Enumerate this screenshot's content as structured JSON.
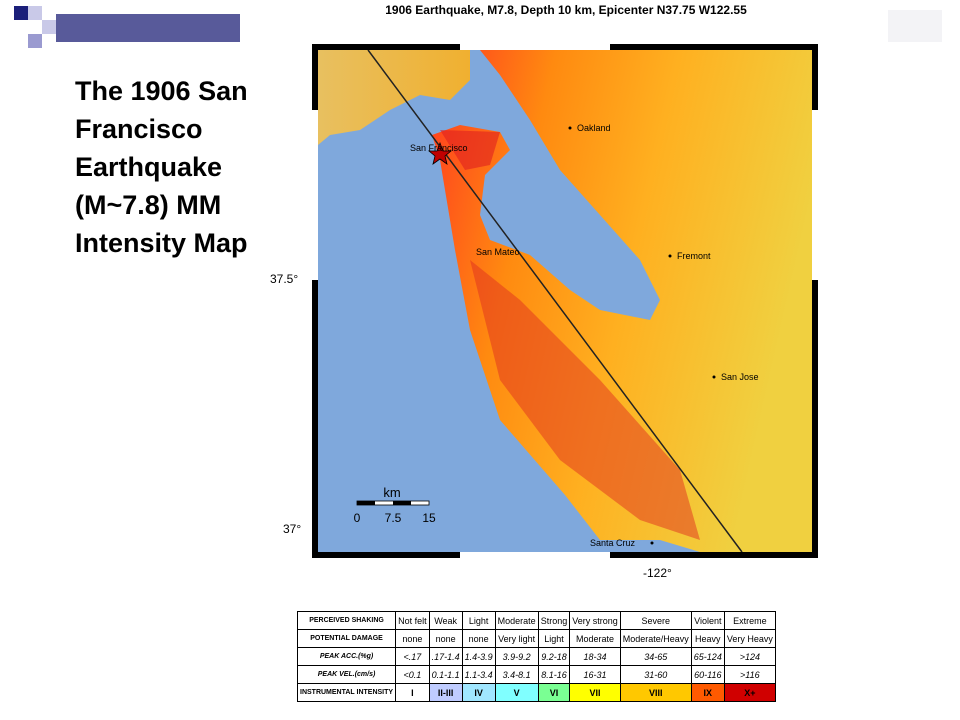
{
  "slide": {
    "title": "The 1906 San Francisco Earthquake (M~7.8) MM Intensity Map"
  },
  "map": {
    "title": "1906 Earthquake,  M7.8, Depth 10 km, Epicenter N37.75 W122.55",
    "lat_labels": [
      "37.5°",
      "37°"
    ],
    "lon_label": "-122°",
    "cities": [
      "San Francisco",
      "Oakland",
      "San Mateo",
      "Fremont",
      "San Jose",
      "Santa Cruz"
    ],
    "scale": {
      "unit": "km",
      "ticks": [
        "0",
        "7.5",
        "15"
      ]
    }
  },
  "legend": {
    "rows": [
      [
        "PERCEIVED SHAKING",
        "Not felt",
        "Weak",
        "Light",
        "Moderate",
        "Strong",
        "Very strong",
        "Severe",
        "Violent",
        "Extreme"
      ],
      [
        "POTENTIAL DAMAGE",
        "none",
        "none",
        "none",
        "Very light",
        "Light",
        "Moderate",
        "Moderate/Heavy",
        "Heavy",
        "Very Heavy"
      ],
      [
        "PEAK ACC.(%g)",
        "<.17",
        ".17-1.4",
        "1.4-3.9",
        "3.9-9.2",
        "9.2-18",
        "18-34",
        "34-65",
        "65-124",
        ">124"
      ],
      [
        "PEAK VEL.(cm/s)",
        "<0.1",
        "0.1-1.1",
        "1.1-3.4",
        "3.4-8.1",
        "8.1-16",
        "16-31",
        "31-60",
        "60-116",
        ">116"
      ],
      [
        "INSTRUMENTAL INTENSITY",
        "I",
        "II-III",
        "IV",
        "V",
        "VI",
        "VII",
        "VIII",
        "IX",
        "X+"
      ]
    ]
  }
}
